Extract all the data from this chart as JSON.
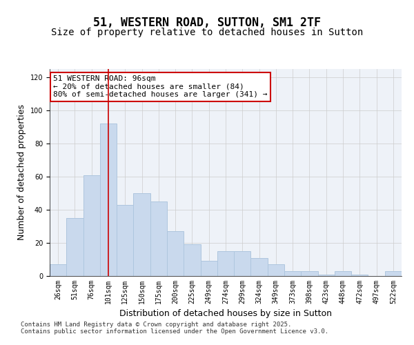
{
  "title": "51, WESTERN ROAD, SUTTON, SM1 2TF",
  "subtitle": "Size of property relative to detached houses in Sutton",
  "xlabel": "Distribution of detached houses by size in Sutton",
  "ylabel": "Number of detached properties",
  "categories": [
    "26sqm",
    "51sqm",
    "76sqm",
    "101sqm",
    "125sqm",
    "150sqm",
    "175sqm",
    "200sqm",
    "225sqm",
    "249sqm",
    "274sqm",
    "299sqm",
    "324sqm",
    "349sqm",
    "373sqm",
    "398sqm",
    "423sqm",
    "448sqm",
    "472sqm",
    "497sqm",
    "522sqm"
  ],
  "values": [
    7,
    35,
    61,
    92,
    43,
    50,
    45,
    27,
    19,
    9,
    15,
    15,
    11,
    7,
    3,
    3,
    1,
    3,
    1,
    0,
    3
  ],
  "bar_color": "#c9d9ed",
  "bar_edge_color": "#aec6de",
  "grid_color": "#cccccc",
  "bg_color": "#eef2f8",
  "vline_x": 3,
  "vline_color": "#cc0000",
  "annotation_text": "51 WESTERN ROAD: 96sqm\n← 20% of detached houses are smaller (84)\n80% of semi-detached houses are larger (341) →",
  "annotation_box_color": "#cc0000",
  "ylim": [
    0,
    125
  ],
  "yticks": [
    0,
    20,
    40,
    60,
    80,
    100,
    120
  ],
  "footnote": "Contains HM Land Registry data © Crown copyright and database right 2025.\nContains public sector information licensed under the Open Government Licence v3.0.",
  "title_fontsize": 12,
  "subtitle_fontsize": 10,
  "xlabel_fontsize": 9,
  "ylabel_fontsize": 9,
  "tick_fontsize": 7,
  "annot_fontsize": 8,
  "footnote_fontsize": 6.5
}
